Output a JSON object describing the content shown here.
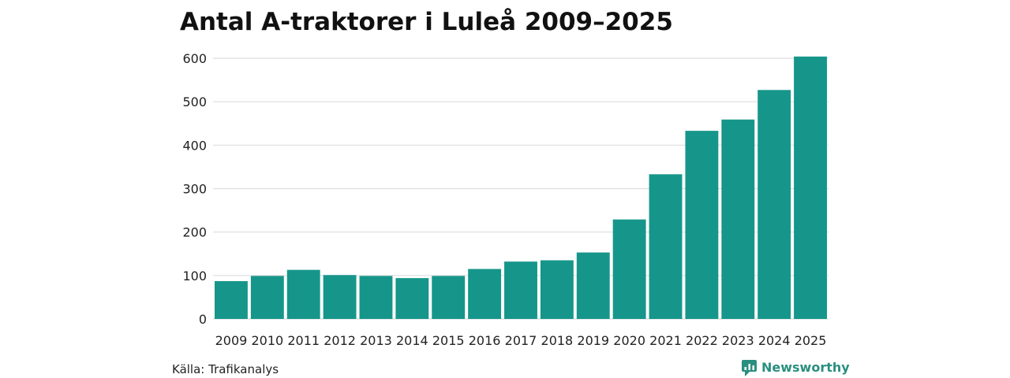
{
  "colors": {
    "bar": "#16968a",
    "grid": "#dddddd",
    "brand": "#2a8f80"
  },
  "source": "Källa: Trafikanalys",
  "brand": {
    "name": "Newsworthy",
    "icon": "newsworthy-logo-icon"
  },
  "chart_data": {
    "type": "bar",
    "title": "Antal A-traktorer i Luleå 2009–2025",
    "xlabel": "",
    "ylabel": "",
    "ylim": [
      0,
      600
    ],
    "yticks": [
      0,
      100,
      200,
      300,
      400,
      500,
      600
    ],
    "grid": true,
    "categories": [
      "2009",
      "2010",
      "2011",
      "2012",
      "2013",
      "2014",
      "2015",
      "2016",
      "2017",
      "2018",
      "2019",
      "2020",
      "2021",
      "2022",
      "2023",
      "2024",
      "2025"
    ],
    "values": [
      87,
      99,
      113,
      101,
      99,
      94,
      99,
      115,
      132,
      135,
      153,
      229,
      333,
      433,
      459,
      527,
      604
    ]
  }
}
